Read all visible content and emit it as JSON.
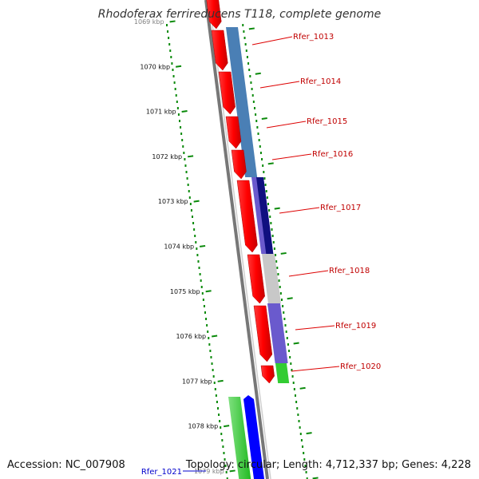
{
  "title": "Rhodoferax ferrireducens T118, complete genome",
  "accession": "Accession: NC_007908",
  "summary": "Topology: circular; Length: 4,712,337 bp; Genes: 4,228",
  "colors": {
    "forward_gene": "#ff0000",
    "blast_blue": "#4a7fb5",
    "blast_navy": "#101080",
    "blast_gray": "#c8c8c8",
    "blast_purple": "#6a5acd",
    "blast_green": "#33cc33",
    "backbone": "#777777",
    "tick_dots": "#0a8a0a"
  },
  "ticks": [
    {
      "kbp": 1069,
      "label": "1069 kbp",
      "faded": true
    },
    {
      "kbp": 1070,
      "label": "1070 kbp"
    },
    {
      "kbp": 1071,
      "label": "1071 kbp"
    },
    {
      "kbp": 1072,
      "label": "1072 kbp"
    },
    {
      "kbp": 1073,
      "label": "1073 kbp"
    },
    {
      "kbp": 1074,
      "label": "1074 kbp"
    },
    {
      "kbp": 1075,
      "label": "1075 kbp"
    },
    {
      "kbp": 1076,
      "label": "1076 kbp"
    },
    {
      "kbp": 1077,
      "label": "1077 kbp"
    },
    {
      "kbp": 1078,
      "label": "1078 kbp"
    },
    {
      "kbp": 1079,
      "label": "1079 kbp",
      "faded": true
    }
  ],
  "gene_labels": [
    {
      "id": "rfer-1013",
      "name": "Rfer_1013"
    },
    {
      "id": "rfer-1014",
      "name": "Rfer_1014"
    },
    {
      "id": "rfer-1015",
      "name": "Rfer_1015"
    },
    {
      "id": "rfer-1016",
      "name": "Rfer_1016"
    },
    {
      "id": "rfer-1017",
      "name": "Rfer_1017"
    },
    {
      "id": "rfer-1018",
      "name": "Rfer_1018"
    },
    {
      "id": "rfer-1019",
      "name": "Rfer_1019"
    },
    {
      "id": "rfer-1020",
      "name": "Rfer_1020"
    }
  ],
  "other_label": "Rfer_1021"
}
